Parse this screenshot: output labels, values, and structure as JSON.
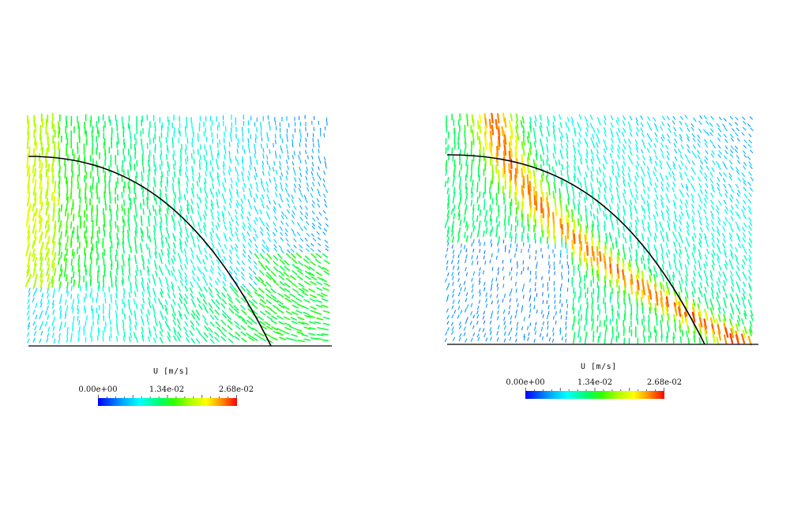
{
  "panels": [
    {
      "name": "left",
      "legend": {
        "title": "U [m/s]",
        "ticks": [
          "0.00e+00",
          "1.34e-02",
          "2.68e-02"
        ]
      }
    },
    {
      "name": "right",
      "legend": {
        "title": "U [m/s]",
        "ticks": [
          "0.00e+00",
          "1.34e-02",
          "2.68e-02"
        ]
      }
    }
  ],
  "colors": {
    "low": "#0000ff",
    "mid": "#00ff44",
    "high": "#ff0000",
    "curve": "#000000"
  }
}
